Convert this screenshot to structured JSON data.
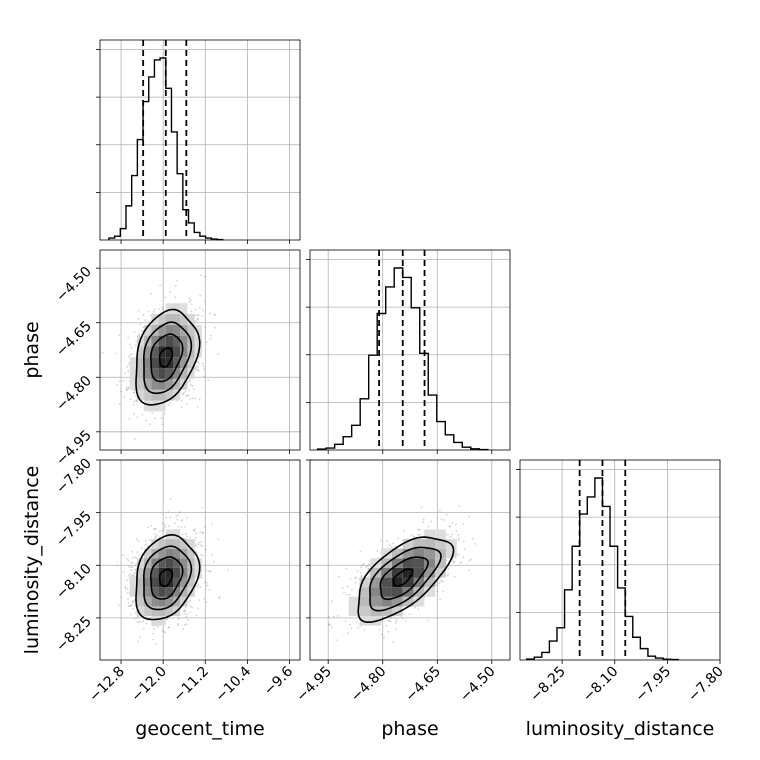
{
  "chart_data": {
    "type": "corner",
    "parameters": [
      {
        "name": "geocent_time",
        "range": [
          -13.2,
          -9.4
        ],
        "ticks": [
          -12.8,
          -12.0,
          -11.2,
          -10.4,
          -9.6
        ],
        "tick_labels": [
          "−12.8",
          "−12.0",
          "−11.2",
          "−10.4",
          "−9.6"
        ],
        "quantiles": [
          -12.38,
          -11.95,
          -11.56
        ],
        "mean": -11.95,
        "sd": 0.3
      },
      {
        "name": "phase",
        "range": [
          -5.0,
          -4.45
        ],
        "ticks": [
          -4.95,
          -4.8,
          -4.65,
          -4.5
        ],
        "tick_labels": [
          "−4.95",
          "−4.80",
          "−4.65",
          "−4.50"
        ],
        "quantiles": [
          -4.81,
          -4.745,
          -4.685
        ],
        "mean": -4.745,
        "sd": 0.065
      },
      {
        "name": "luminosity_distance",
        "range": [
          -8.37,
          -7.8
        ],
        "ticks": [
          -8.25,
          -8.1,
          -7.95,
          -7.8
        ],
        "tick_labels": [
          "−8.25",
          "−8.10",
          "−7.95",
          "−7.80"
        ],
        "quantiles": [
          -8.2,
          -8.135,
          -8.07
        ],
        "mean": -8.135,
        "sd": 0.06
      }
    ],
    "histograms": {
      "geocent_time": [
        1,
        2,
        6,
        18,
        34,
        53,
        73,
        86,
        95,
        96,
        80,
        57,
        35,
        16,
        9,
        4,
        2,
        1,
        0.5,
        0.2
      ],
      "phase": [
        0.5,
        1,
        3,
        7,
        13,
        27,
        50,
        72,
        86,
        96,
        91,
        75,
        51,
        29,
        15,
        8,
        4,
        1.5,
        0.6,
        0.2
      ],
      "luminosity_distance": [
        0.5,
        1.5,
        4,
        10,
        17,
        37,
        60,
        77,
        86,
        96,
        81,
        60,
        38,
        23,
        12,
        6,
        2,
        1,
        0.4,
        0.2
      ]
    },
    "correlations": {
      "phase|geocent_time": 0.3,
      "luminosity_distance|geocent_time": 0.25,
      "luminosity_distance|phase": 0.62
    },
    "grid": true,
    "colors": {
      "line": "#000000",
      "points": "#808080",
      "grid": "#b0b0b0"
    }
  }
}
